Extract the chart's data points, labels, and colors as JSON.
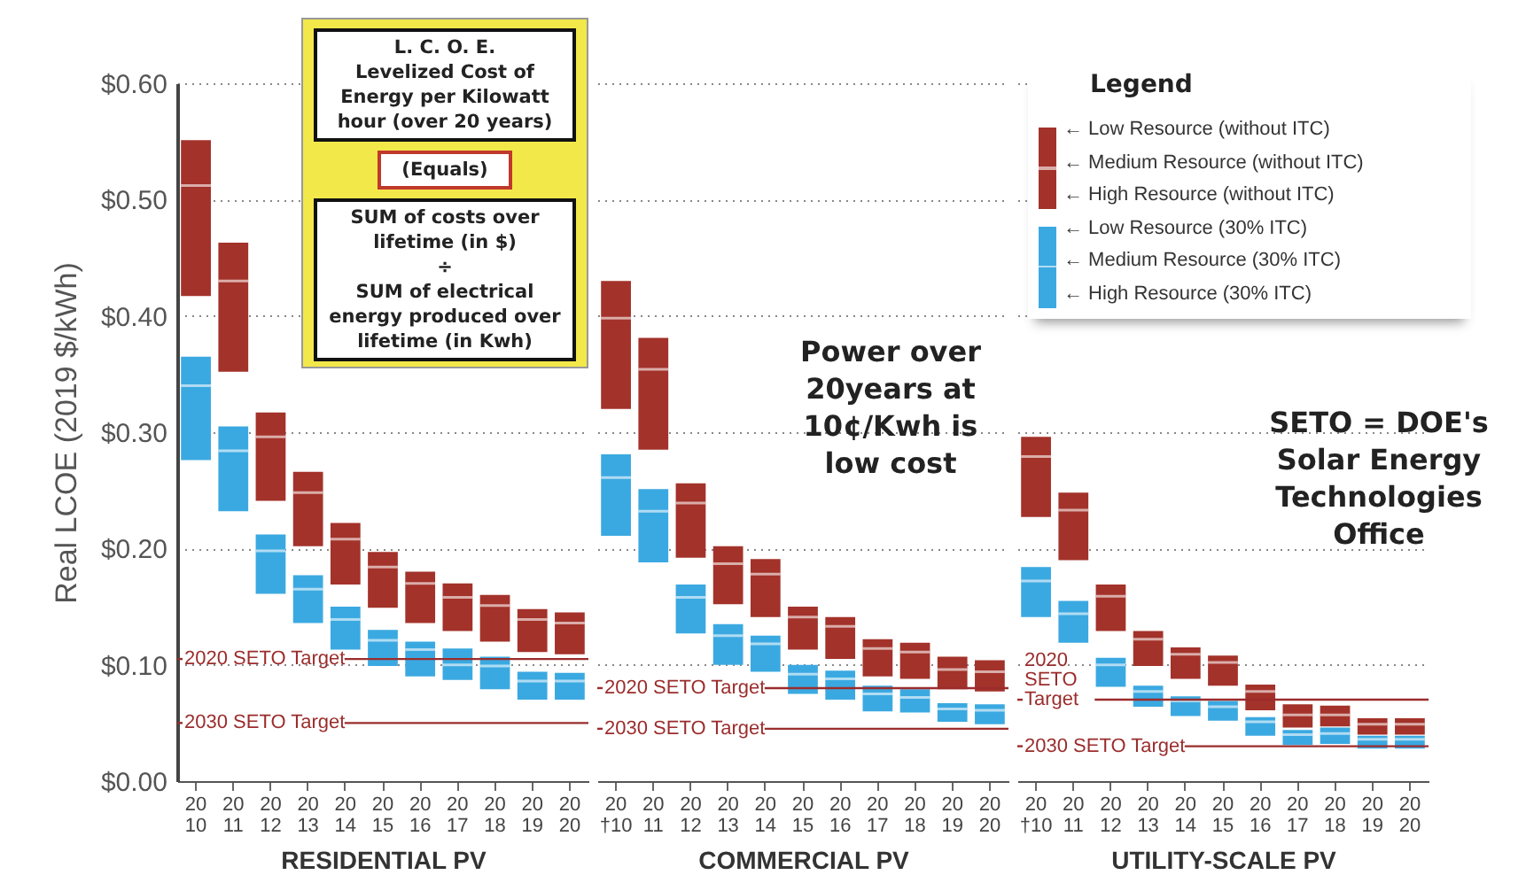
{
  "chart_data": [
    {
      "type": "box",
      "xlabel": "RESIDENTIAL PV",
      "ylabel": "Real LCOE (2019 $/kWh)",
      "categories": [
        "2010",
        "2011",
        "2012",
        "2013",
        "2014",
        "2015",
        "2016",
        "2017",
        "2018",
        "2019",
        "2020"
      ],
      "ylim": [
        0,
        0.6
      ],
      "yticks": [
        {
          "value": 0,
          "label": "$0.00"
        },
        {
          "value": 0.1,
          "label": "$0.10"
        },
        {
          "value": 0.2,
          "label": "$0.20"
        },
        {
          "value": 0.3,
          "label": "$0.30"
        },
        {
          "value": 0.4,
          "label": "$0.40"
        },
        {
          "value": 0.5,
          "label": "$0.50"
        },
        {
          "value": 0.6,
          "label": "$0.60"
        }
      ],
      "grid": "y",
      "ref_lines": [
        {
          "axis": "y",
          "value": 0.105,
          "label": "2020 SETO Target",
          "color": "#9b2c2c"
        },
        {
          "axis": "y",
          "value": 0.05,
          "label": "2030 SETO Target",
          "color": "#9b2c2c"
        }
      ],
      "series": [
        {
          "color": "#a3322a",
          "boxes": [
            {
              "low": 0.417,
              "q1": 0.417,
              "median": 0.512,
              "q3": 0.551,
              "high": 0.551
            },
            {
              "low": 0.352,
              "q1": 0.352,
              "median": 0.43,
              "q3": 0.463,
              "high": 0.463
            },
            {
              "low": 0.241,
              "q1": 0.241,
              "median": 0.296,
              "q3": 0.317,
              "high": 0.317
            },
            {
              "low": 0.202,
              "q1": 0.202,
              "median": 0.248,
              "q3": 0.266,
              "high": 0.266
            },
            {
              "low": 0.169,
              "q1": 0.169,
              "median": 0.208,
              "q3": 0.222,
              "high": 0.222
            },
            {
              "low": 0.149,
              "q1": 0.149,
              "median": 0.184,
              "q3": 0.197,
              "high": 0.197
            },
            {
              "low": 0.136,
              "q1": 0.136,
              "median": 0.17,
              "q3": 0.18,
              "high": 0.18
            },
            {
              "low": 0.129,
              "q1": 0.129,
              "median": 0.158,
              "q3": 0.17,
              "high": 0.17
            },
            {
              "low": 0.12,
              "q1": 0.12,
              "median": 0.151,
              "q3": 0.16,
              "high": 0.16
            },
            {
              "low": 0.111,
              "q1": 0.111,
              "median": 0.139,
              "q3": 0.148,
              "high": 0.148
            },
            {
              "low": 0.109,
              "q1": 0.109,
              "median": 0.136,
              "q3": 0.145,
              "high": 0.145
            }
          ]
        },
        {
          "color": "#3ba9e1",
          "boxes": [
            {
              "low": 0.276,
              "q1": 0.276,
              "median": 0.34,
              "q3": 0.365,
              "high": 0.365
            },
            {
              "low": 0.232,
              "q1": 0.232,
              "median": 0.284,
              "q3": 0.305,
              "high": 0.305
            },
            {
              "low": 0.161,
              "q1": 0.161,
              "median": 0.198,
              "q3": 0.212,
              "high": 0.212
            },
            {
              "low": 0.136,
              "q1": 0.136,
              "median": 0.165,
              "q3": 0.177,
              "high": 0.177
            },
            {
              "low": 0.113,
              "q1": 0.113,
              "median": 0.139,
              "q3": 0.15,
              "high": 0.15
            },
            {
              "low": 0.099,
              "q1": 0.099,
              "median": 0.121,
              "q3": 0.13,
              "high": 0.13
            },
            {
              "low": 0.09,
              "q1": 0.09,
              "median": 0.113,
              "q3": 0.12,
              "high": 0.12
            },
            {
              "low": 0.087,
              "q1": 0.087,
              "median": 0.1,
              "q3": 0.114,
              "high": 0.114
            },
            {
              "low": 0.079,
              "q1": 0.079,
              "median": 0.099,
              "q3": 0.107,
              "high": 0.107
            },
            {
              "low": 0.07,
              "q1": 0.07,
              "median": 0.086,
              "q3": 0.094,
              "high": 0.094
            },
            {
              "low": 0.07,
              "q1": 0.07,
              "median": 0.086,
              "q3": 0.093,
              "high": 0.093
            }
          ]
        }
      ],
      "annotations": [
        "L. C. O. E.\nLevelized Cost of\nEnergy per Kilowatt\nhour (over 20 years)",
        "(Equals)",
        "SUM of costs over\nlifetime (in $)\n÷\nSUM of electrical\nenergy produced over\nlifetime (in Kwh)"
      ]
    },
    {
      "type": "box",
      "xlabel": "COMMERCIAL PV",
      "categories": [
        "20†10",
        "2011",
        "2012",
        "2013",
        "2014",
        "2015",
        "2016",
        "2017",
        "2018",
        "2019",
        "2020"
      ],
      "ylim": [
        0,
        0.6
      ],
      "yticks": [
        0,
        0.1,
        0.2,
        0.3,
        0.4,
        0.5,
        0.6
      ],
      "grid": "y",
      "tick_labels": "x",
      "ref_lines": [
        {
          "axis": "y",
          "value": 0.08,
          "label": "2020 SETO Target",
          "color": "#9b2c2c"
        },
        {
          "axis": "y",
          "value": 0.045,
          "label": "2030 SETO Target",
          "color": "#9b2c2c"
        }
      ],
      "series": [
        {
          "color": "#a3322a",
          "boxes": [
            {
              "low": 0.32,
              "q1": 0.32,
              "median": 0.398,
              "q3": 0.43,
              "high": 0.43
            },
            {
              "low": 0.285,
              "q1": 0.285,
              "median": 0.354,
              "q3": 0.381,
              "high": 0.381
            },
            {
              "low": 0.192,
              "q1": 0.192,
              "median": 0.239,
              "q3": 0.256,
              "high": 0.256
            },
            {
              "low": 0.152,
              "q1": 0.152,
              "median": 0.187,
              "q3": 0.202,
              "high": 0.202
            },
            {
              "low": 0.141,
              "q1": 0.141,
              "median": 0.178,
              "q3": 0.191,
              "high": 0.191
            },
            {
              "low": 0.113,
              "q1": 0.113,
              "median": 0.141,
              "q3": 0.15,
              "high": 0.15
            },
            {
              "low": 0.105,
              "q1": 0.105,
              "median": 0.133,
              "q3": 0.141,
              "high": 0.141
            },
            {
              "low": 0.09,
              "q1": 0.09,
              "median": 0.114,
              "q3": 0.122,
              "high": 0.122
            },
            {
              "low": 0.088,
              "q1": 0.088,
              "median": 0.111,
              "q3": 0.119,
              "high": 0.119
            },
            {
              "low": 0.079,
              "q1": 0.079,
              "median": 0.096,
              "q3": 0.107,
              "high": 0.107
            },
            {
              "low": 0.077,
              "q1": 0.077,
              "median": 0.094,
              "q3": 0.104,
              "high": 0.104
            }
          ]
        },
        {
          "color": "#3ba9e1",
          "boxes": [
            {
              "low": 0.211,
              "q1": 0.211,
              "median": 0.261,
              "q3": 0.281,
              "high": 0.281
            },
            {
              "low": 0.188,
              "q1": 0.188,
              "median": 0.232,
              "q3": 0.251,
              "high": 0.251
            },
            {
              "low": 0.127,
              "q1": 0.127,
              "median": 0.158,
              "q3": 0.169,
              "high": 0.169
            },
            {
              "low": 0.1,
              "q1": 0.1,
              "median": 0.125,
              "q3": 0.135,
              "high": 0.135
            },
            {
              "low": 0.094,
              "q1": 0.094,
              "median": 0.118,
              "q3": 0.125,
              "high": 0.125
            },
            {
              "low": 0.075,
              "q1": 0.075,
              "median": 0.092,
              "q3": 0.1,
              "high": 0.1
            },
            {
              "low": 0.07,
              "q1": 0.07,
              "median": 0.088,
              "q3": 0.095,
              "high": 0.095
            },
            {
              "low": 0.06,
              "q1": 0.06,
              "median": 0.075,
              "q3": 0.082,
              "high": 0.082
            },
            {
              "low": 0.059,
              "q1": 0.059,
              "median": 0.072,
              "q3": 0.079,
              "high": 0.079
            },
            {
              "low": 0.051,
              "q1": 0.051,
              "median": 0.062,
              "q3": 0.067,
              "high": 0.067
            },
            {
              "low": 0.049,
              "q1": 0.049,
              "median": 0.061,
              "q3": 0.066,
              "high": 0.066
            }
          ]
        }
      ],
      "annotations": [
        "Power over\n20years at\n10¢/Kwh is\nlow cost"
      ]
    },
    {
      "type": "box",
      "xlabel": "UTILITY-SCALE PV",
      "categories": [
        "20†10",
        "2011",
        "2012",
        "2013",
        "2014",
        "2015",
        "2016",
        "2017",
        "2018",
        "2019",
        "2020"
      ],
      "ylim": [
        0,
        0.6
      ],
      "yticks": [
        0,
        0.1,
        0.2,
        0.3,
        0.4,
        0.5,
        0.6
      ],
      "grid": "y",
      "tick_labels": "x",
      "ref_lines": [
        {
          "axis": "y",
          "value": 0.07,
          "label": "2020 SETO Target",
          "color": "#9b2c2c"
        },
        {
          "axis": "y",
          "value": 0.03,
          "label": "2030 SETO Target",
          "color": "#9b2c2c"
        }
      ],
      "series": [
        {
          "color": "#a3322a",
          "boxes": [
            {
              "low": 0.227,
              "q1": 0.227,
              "median": 0.279,
              "q3": 0.296,
              "high": 0.296
            },
            {
              "low": 0.19,
              "q1": 0.19,
              "median": 0.233,
              "q3": 0.248,
              "high": 0.248
            },
            {
              "low": 0.129,
              "q1": 0.129,
              "median": 0.159,
              "q3": 0.169,
              "high": 0.169
            },
            {
              "low": 0.099,
              "q1": 0.099,
              "median": 0.122,
              "q3": 0.129,
              "high": 0.129
            },
            {
              "low": 0.088,
              "q1": 0.088,
              "median": 0.109,
              "q3": 0.115,
              "high": 0.115
            },
            {
              "low": 0.082,
              "q1": 0.082,
              "median": 0.102,
              "q3": 0.108,
              "high": 0.108
            },
            {
              "low": 0.061,
              "q1": 0.061,
              "median": 0.077,
              "q3": 0.083,
              "high": 0.083
            },
            {
              "low": 0.046,
              "q1": 0.046,
              "median": 0.057,
              "q3": 0.066,
              "high": 0.066
            },
            {
              "low": 0.047,
              "q1": 0.047,
              "median": 0.057,
              "q3": 0.065,
              "high": 0.065
            },
            {
              "low": 0.04,
              "q1": 0.04,
              "median": 0.049,
              "q3": 0.054,
              "high": 0.054
            },
            {
              "low": 0.04,
              "q1": 0.04,
              "median": 0.049,
              "q3": 0.054,
              "high": 0.054
            }
          ]
        },
        {
          "color": "#3ba9e1",
          "boxes": [
            {
              "low": 0.141,
              "q1": 0.141,
              "median": 0.172,
              "q3": 0.184,
              "high": 0.184
            },
            {
              "low": 0.119,
              "q1": 0.119,
              "median": 0.144,
              "q3": 0.155,
              "high": 0.155
            },
            {
              "low": 0.081,
              "q1": 0.081,
              "median": 0.1,
              "q3": 0.106,
              "high": 0.106
            },
            {
              "low": 0.064,
              "q1": 0.064,
              "median": 0.077,
              "q3": 0.082,
              "high": 0.082
            },
            {
              "low": 0.056,
              "q1": 0.056,
              "median": 0.069,
              "q3": 0.073,
              "high": 0.073
            },
            {
              "low": 0.052,
              "q1": 0.052,
              "median": 0.064,
              "q3": 0.069,
              "high": 0.069
            },
            {
              "low": 0.039,
              "q1": 0.039,
              "median": 0.051,
              "q3": 0.055,
              "high": 0.055
            },
            {
              "low": 0.031,
              "q1": 0.031,
              "median": 0.04,
              "q3": 0.044,
              "high": 0.044
            },
            {
              "low": 0.032,
              "q1": 0.032,
              "median": 0.041,
              "q3": 0.046,
              "high": 0.046
            },
            {
              "low": 0.028,
              "q1": 0.028,
              "median": 0.036,
              "q3": 0.039,
              "high": 0.039
            },
            {
              "low": 0.028,
              "q1": 0.028,
              "median": 0.036,
              "q3": 0.039,
              "high": 0.039
            }
          ]
        }
      ],
      "legend_title": "Legend",
      "annotations": [
        "SETO = DOE's\nSolar Energy\nTechnologies\nOffice",
        "← Low Resource (without ITC)",
        "← Medium Resource (without ITC)",
        "← High Resource (without ITC)",
        "← Low Resource (30% ITC)",
        "← Medium Resource (30% ITC)",
        "← High Resource (30% ITC)"
      ]
    }
  ]
}
